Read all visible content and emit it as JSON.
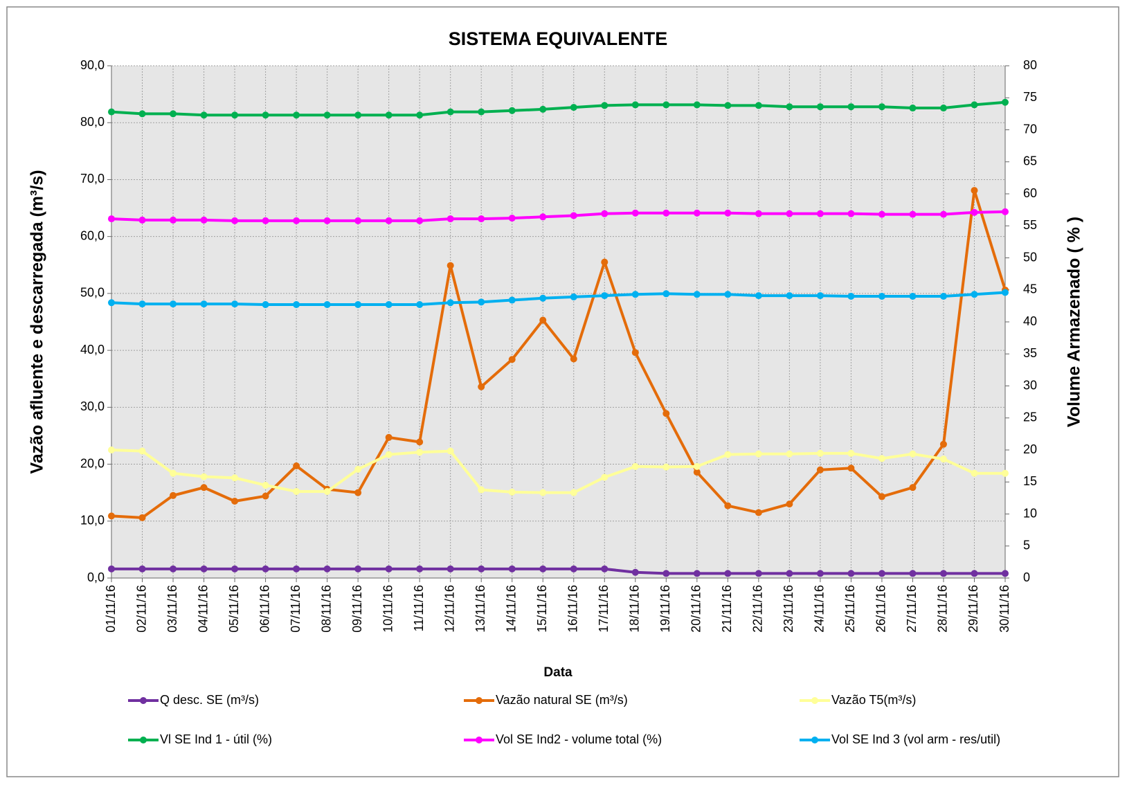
{
  "chart_data": {
    "type": "line",
    "title": "SISTEMA EQUIVALENTE",
    "xlabel": "Data",
    "ylabel": "Vazão afluente e descarregada (m³/s)",
    "y2label": "Volume Armazenado ( % )",
    "categories": [
      "01/11/16",
      "02/11/16",
      "03/11/16",
      "04/11/16",
      "05/11/16",
      "06/11/16",
      "07/11/16",
      "08/11/16",
      "09/11/16",
      "10/11/16",
      "11/11/16",
      "12/11/16",
      "13/11/16",
      "14/11/16",
      "15/11/16",
      "16/11/16",
      "17/11/16",
      "18/11/16",
      "19/11/16",
      "20/11/16",
      "21/11/16",
      "22/11/16",
      "23/11/16",
      "24/11/16",
      "25/11/16",
      "26/11/16",
      "27/11/16",
      "28/11/16",
      "29/11/16",
      "30/11/16"
    ],
    "ylim": [
      0,
      90
    ],
    "yticks": [
      {
        "value": 0,
        "label": "0,0"
      },
      {
        "value": 10,
        "label": "10,0"
      },
      {
        "value": 20,
        "label": "20,0"
      },
      {
        "value": 30,
        "label": "30,0"
      },
      {
        "value": 40,
        "label": "40,0"
      },
      {
        "value": 50,
        "label": "50,0"
      },
      {
        "value": 60,
        "label": "60,0"
      },
      {
        "value": 70,
        "label": "70,0"
      },
      {
        "value": 80,
        "label": "80,0"
      },
      {
        "value": 90,
        "label": "90,0"
      }
    ],
    "y2lim": [
      0,
      80
    ],
    "y2ticks": [
      0,
      5,
      10,
      15,
      20,
      25,
      30,
      35,
      40,
      45,
      50,
      55,
      60,
      65,
      70,
      75,
      80
    ],
    "grid": true,
    "legend": "bottom",
    "series": [
      {
        "name": "Q desc. SE (m³/s)",
        "color": "#7030a0",
        "values": [
          1.6,
          1.6,
          1.6,
          1.6,
          1.6,
          1.6,
          1.6,
          1.6,
          1.6,
          1.6,
          1.6,
          1.6,
          1.6,
          1.6,
          1.6,
          1.6,
          1.6,
          1.0,
          0.8,
          0.8,
          0.8,
          0.8,
          0.8,
          0.8,
          0.8,
          0.8,
          0.8,
          0.8,
          0.8,
          0.8
        ]
      },
      {
        "name": "Vazão natural SE (m³/s)",
        "color": "#e46c0a",
        "values": [
          10.9,
          10.6,
          14.5,
          15.9,
          13.5,
          14.4,
          19.7,
          15.6,
          15.0,
          24.7,
          23.9,
          54.9,
          33.6,
          38.4,
          45.3,
          38.5,
          55.5,
          39.6,
          28.9,
          18.6,
          12.7,
          11.5,
          13.0,
          19.0,
          19.3,
          14.3,
          15.9,
          23.5,
          68.1,
          50.6
        ]
      },
      {
        "name": "Vazão T5(m³/s)",
        "color": "#ffff99",
        "values": [
          22.5,
          22.3,
          18.4,
          17.8,
          17.6,
          16.3,
          15.2,
          15.2,
          19.1,
          21.7,
          22.1,
          22.3,
          15.5,
          15.1,
          15.0,
          15.0,
          17.7,
          19.6,
          19.5,
          19.6,
          21.7,
          21.8,
          21.8,
          21.9,
          21.9,
          21.0,
          21.8,
          20.9,
          18.4,
          18.4
        ]
      },
      {
        "name": "Vl SE Ind 1 - útil (%)",
        "color": "#00b050",
        "axis": "y2",
        "values": [
          72.8,
          72.5,
          72.5,
          72.3,
          72.3,
          72.3,
          72.3,
          72.3,
          72.3,
          72.3,
          72.3,
          72.8,
          72.8,
          73.0,
          73.2,
          73.5,
          73.8,
          73.9,
          73.9,
          73.9,
          73.8,
          73.8,
          73.6,
          73.6,
          73.6,
          73.6,
          73.4,
          73.4,
          73.9,
          74.3
        ]
      },
      {
        "name": "Vol SE Ind2 - volume total (%)",
        "color": "#ff00ff",
        "axis": "y2",
        "values": [
          56.1,
          55.9,
          55.9,
          55.9,
          55.8,
          55.8,
          55.8,
          55.8,
          55.8,
          55.8,
          55.8,
          56.1,
          56.1,
          56.2,
          56.4,
          56.6,
          56.9,
          57.0,
          57.0,
          57.0,
          57.0,
          56.9,
          56.9,
          56.9,
          56.9,
          56.8,
          56.8,
          56.8,
          57.1,
          57.2
        ]
      },
      {
        "name": "Vol SE Ind 3 (vol arm - res/util)",
        "color": "#00b0f0",
        "axis": "y2",
        "values": [
          43.0,
          42.8,
          42.8,
          42.8,
          42.8,
          42.7,
          42.7,
          42.7,
          42.7,
          42.7,
          42.7,
          43.0,
          43.1,
          43.4,
          43.7,
          43.9,
          44.1,
          44.3,
          44.4,
          44.3,
          44.3,
          44.1,
          44.1,
          44.1,
          44.0,
          44.0,
          44.0,
          44.0,
          44.3,
          44.6
        ]
      }
    ]
  }
}
